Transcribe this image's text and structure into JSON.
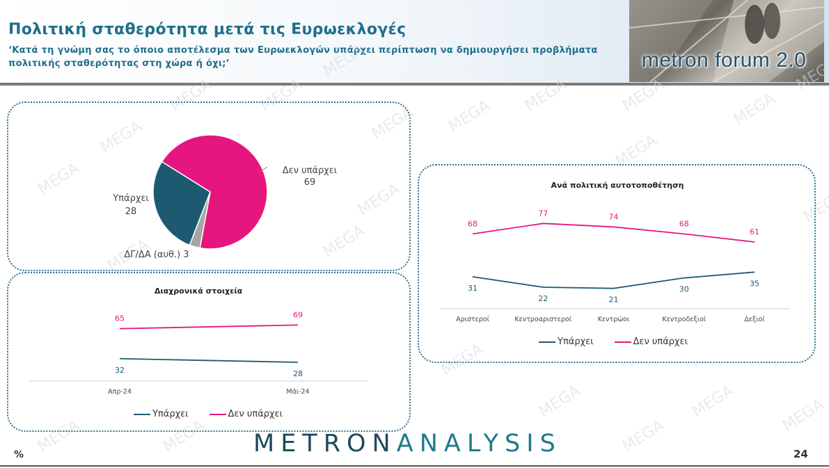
{
  "header": {
    "title": "Πολιτική σταθερότητα μετά τις Ευρωεκλογές",
    "subtitle": "‘Κατά τη γνώμη σας το όποιο αποτέλεσμα των Ευρωεκλογών υπάρχει περίπτωση να δημιουργήσει προβλήματα πολιτικής σταθερότητας στη χώρα ή όχι;’",
    "logo_text": "metron forum 2.0"
  },
  "footer": {
    "brand_part1": "METRON",
    "brand_part2": "ANALYSIS",
    "percent_sign": "%",
    "page_number": "24"
  },
  "watermark_text": "MEGA",
  "colors": {
    "exists": "#1d5a72",
    "not_exists": "#e5177e",
    "dk_na": "#a6a6a6",
    "brand": "#1f6f8b"
  },
  "legend": {
    "exists": "Υπάρχει",
    "not_exists": "Δεν υπάρχει"
  },
  "chart_data": [
    {
      "type": "pie",
      "slices": [
        {
          "label": "Δεν υπάρχει",
          "value": 69,
          "color": "#e5177e"
        },
        {
          "label": "ΔΓ/ΔΑ (αυθ.)",
          "value": 3,
          "color": "#a6a6a6"
        },
        {
          "label": "Υπάρχει",
          "value": 28,
          "color": "#1d5a72"
        }
      ]
    },
    {
      "type": "line",
      "title": "Διαχρονικά στοιχεία",
      "categories": [
        "Απρ-24",
        "Μάι-24"
      ],
      "series": [
        {
          "name": "Υπάρχει",
          "values": [
            32,
            28
          ],
          "color": "#1d5a72"
        },
        {
          "name": "Δεν υπάρχει",
          "values": [
            65,
            69
          ],
          "color": "#e5177e"
        }
      ],
      "legend": "bottom"
    },
    {
      "type": "line",
      "title": "Ανά πολιτική αυτοτοποθέτηση",
      "categories": [
        "Αριστεροί",
        "Κεντροαριστεροί",
        "Κεντρώοι",
        "Κεντροδεξιοί",
        "Δεξιοί"
      ],
      "series": [
        {
          "name": "Υπάρχει",
          "values": [
            31,
            22,
            21,
            30,
            35
          ],
          "color": "#1d5a72"
        },
        {
          "name": "Δεν υπάρχει",
          "values": [
            68,
            77,
            74,
            68,
            61
          ],
          "color": "#e5177e"
        }
      ],
      "legend": "bottom"
    }
  ]
}
